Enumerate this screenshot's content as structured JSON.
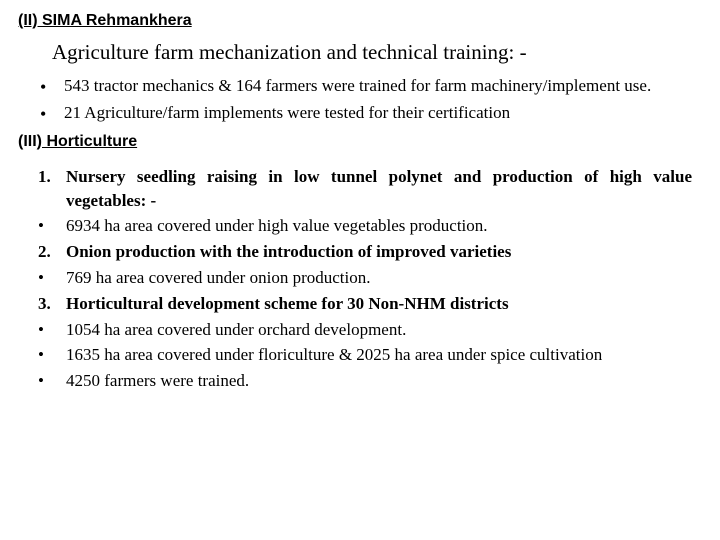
{
  "section_ii": {
    "heading": "(II) SIMA Rehmankhera",
    "subtitle": "Agriculture farm mechanization and technical training: -",
    "bullets": [
      "543 tractor mechanics & 164 farmers were trained for farm machinery/implement use.",
      "21 Agriculture/farm implements were tested for their certification"
    ]
  },
  "section_iii": {
    "roman": "(III)",
    "label": " Horticulture",
    "items": [
      {
        "type": "number",
        "marker": "1.",
        "bold": true,
        "text": "Nursery seedling raising in low tunnel polynet and production of high value vegetables: -"
      },
      {
        "type": "bullet",
        "bold": false,
        "text": "6934 ha area covered under high value vegetables production."
      },
      {
        "type": "number",
        "marker": "2.",
        "bold": true,
        "text": "Onion production with the introduction of improved varieties"
      },
      {
        "type": "bullet",
        "bold": false,
        "text": "769 ha area covered under onion production."
      },
      {
        "type": "number",
        "marker": "3.",
        "bold": true,
        "text": "Horticultural development scheme for 30 Non-NHM districts"
      },
      {
        "type": "bullet",
        "bold": false,
        "text": "1054 ha area covered under orchard development."
      },
      {
        "type": "bullet",
        "bold": false,
        "text": "1635 ha area covered under floriculture & 2025 ha area under spice cultivation"
      },
      {
        "type": "bullet",
        "bold": false,
        "text": "4250 farmers were trained."
      }
    ]
  }
}
